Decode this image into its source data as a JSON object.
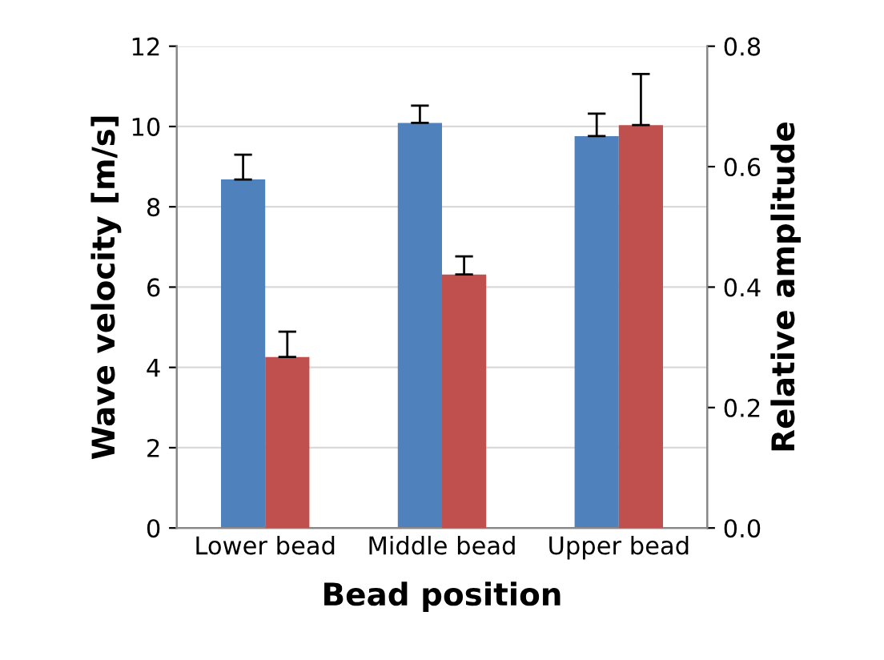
{
  "chart_data": {
    "type": "bar",
    "xlabel": "Bead position",
    "ylabel": "Wave velocity [m/s]",
    "y2label": "Relative amplitude",
    "categories": [
      "Lower bead",
      "Middle bead",
      "Upper bead"
    ],
    "series": [
      {
        "color": "#4f81bd",
        "values": [
          8.68,
          10.09,
          9.76
        ],
        "errors": [
          [
            8.68,
            9.3
          ],
          [
            10.09,
            10.52
          ],
          [
            9.76,
            10.32
          ]
        ]
      },
      {
        "color": "#c0504d",
        "axis": "y2",
        "values": [
          0.284,
          0.421,
          0.669
        ],
        "errors": [
          [
            0.284,
            0.326
          ],
          [
            0.421,
            0.451
          ],
          [
            0.669,
            0.754
          ]
        ]
      }
    ],
    "ylim": [
      0,
      12
    ],
    "yticks": [
      0,
      2,
      4,
      6,
      8,
      10,
      12
    ],
    "y2lim": [
      0,
      0.8
    ],
    "y2ticks": [
      {
        "value": 0,
        "label": "0.0"
      },
      {
        "value": 0.2,
        "label": "0.2"
      },
      {
        "value": 0.4,
        "label": "0.4"
      },
      {
        "value": 0.6,
        "label": "0.6"
      },
      {
        "value": 0.8,
        "label": "0.8"
      }
    ],
    "grid": "y"
  }
}
